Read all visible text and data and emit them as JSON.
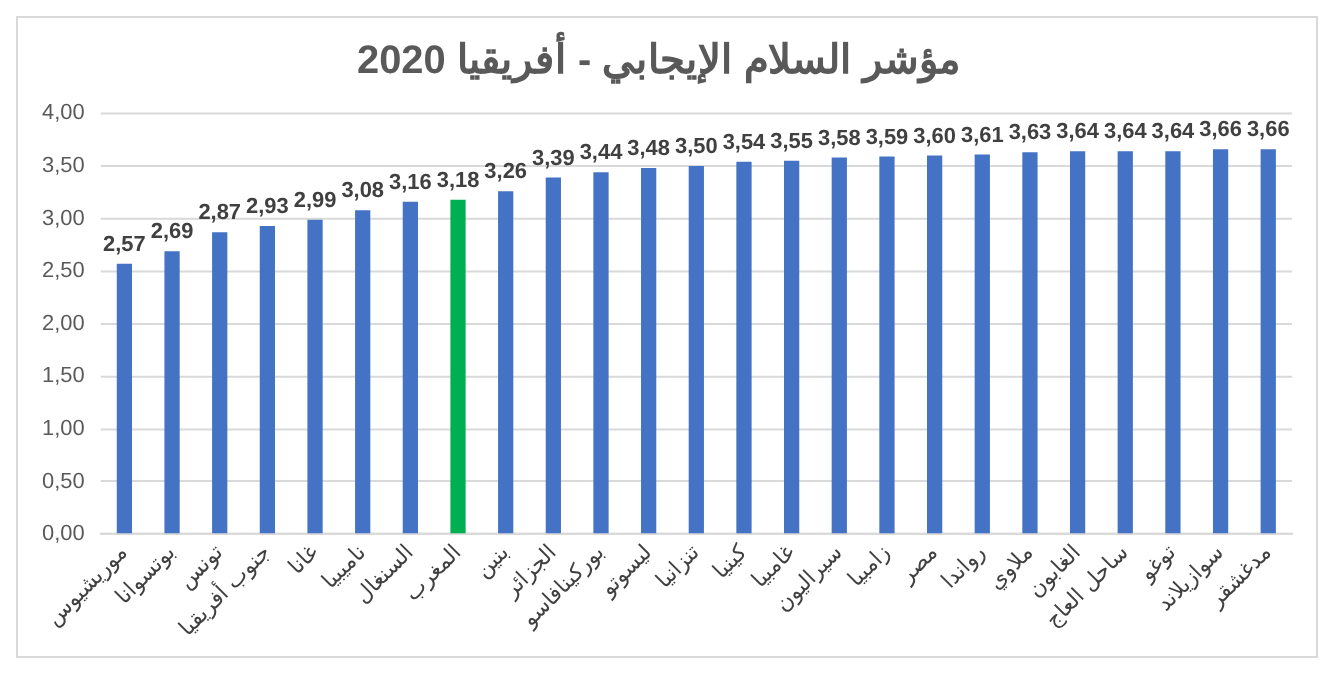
{
  "chart_data": {
    "type": "bar",
    "title": "مؤشر السلام الإيجابي - أفريقيا 2020",
    "categories": [
      "موريشيوس",
      "بوتسوانا",
      "تونس",
      "جنوب أفريقيا",
      "غانا",
      "ناميبيا",
      "السنغال",
      "المغرب",
      "بنين",
      "الجزائر",
      "بوركينافاسو",
      "ليسوتو",
      "تنزانيا",
      "كينيا",
      "غامبيا",
      "سيراليون",
      "زامبيا",
      "مصر",
      "رواندا",
      "ملاوي",
      "الغابون",
      "ساحل العاج",
      "توغو",
      "سوازيلاند",
      "مدغشقر"
    ],
    "values": [
      2.57,
      2.69,
      2.87,
      2.93,
      2.99,
      3.08,
      3.16,
      3.18,
      3.26,
      3.39,
      3.44,
      3.48,
      3.5,
      3.54,
      3.55,
      3.58,
      3.59,
      3.6,
      3.61,
      3.63,
      3.64,
      3.64,
      3.64,
      3.66,
      3.66
    ],
    "value_labels": [
      "2,57",
      "2,69",
      "2,87",
      "2,93",
      "2,99",
      "3,08",
      "3,16",
      "3,18",
      "3,26",
      "3,39",
      "3,44",
      "3,48",
      "3,50",
      "3,54",
      "3,55",
      "3,58",
      "3,59",
      "3,60",
      "3,61",
      "3,63",
      "3,64",
      "3,64",
      "3,64",
      "3,66",
      "3,66"
    ],
    "colors": [
      "#4472c4",
      "#4472c4",
      "#4472c4",
      "#4472c4",
      "#4472c4",
      "#4472c4",
      "#4472c4",
      "#00b050",
      "#4472c4",
      "#4472c4",
      "#4472c4",
      "#4472c4",
      "#4472c4",
      "#4472c4",
      "#4472c4",
      "#4472c4",
      "#4472c4",
      "#4472c4",
      "#4472c4",
      "#4472c4",
      "#4472c4",
      "#4472c4",
      "#4472c4",
      "#4472c4",
      "#4472c4"
    ],
    "ylim": [
      0,
      4
    ],
    "yticks": [
      {
        "value": 0,
        "label": "0,00"
      },
      {
        "value": 0.5,
        "label": "0,50"
      },
      {
        "value": 1,
        "label": "1,00"
      },
      {
        "value": 1.5,
        "label": "1,50"
      },
      {
        "value": 2,
        "label": "2,00"
      },
      {
        "value": 2.5,
        "label": "2,50"
      },
      {
        "value": 3,
        "label": "3,00"
      },
      {
        "value": 3.5,
        "label": "3,50"
      },
      {
        "value": 4,
        "label": "4,00"
      }
    ],
    "grid": "y",
    "legend": false
  }
}
